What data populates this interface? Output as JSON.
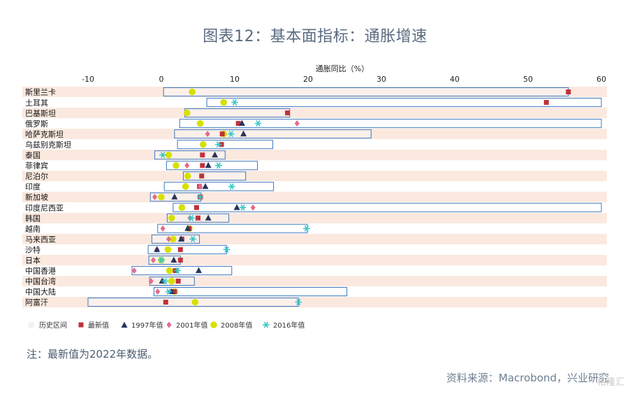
{
  "title": "图表12：基本面指标：通胀增速",
  "note": "注：最新值为2022年数据。",
  "source": "资料来源：Macrobond，兴业研究",
  "watermark": "格隆汇",
  "colors": {
    "band": "#fbe9df",
    "range_stroke": "#3a78c2",
    "latest": "#c0313a",
    "y1997": "#26355e",
    "y2001": "#e56a8a",
    "y2008": "#d6e000",
    "y2016": "#35c7c8"
  },
  "chart_data": {
    "type": "range-dot",
    "xlabel": "通胀同比（%）",
    "xlim": [
      -10,
      60
    ],
    "xticks": [
      -10,
      0,
      10,
      20,
      30,
      40,
      50,
      60
    ],
    "legend": [
      {
        "key": "range",
        "label": "历史区间"
      },
      {
        "key": "latest",
        "label": "最新值"
      },
      {
        "key": "y1997",
        "label": "1997年值"
      },
      {
        "key": "y2001",
        "label": "2001年值"
      },
      {
        "key": "y2008",
        "label": "2008年值"
      },
      {
        "key": "y2016",
        "label": "2016年值"
      }
    ],
    "rows": [
      {
        "label": "斯里兰卡",
        "min": 0.3,
        "max": 55.5,
        "latest": 55.5,
        "y1997": null,
        "y2001": null,
        "y2008": 4.2,
        "y2016": null
      },
      {
        "label": "土耳其",
        "min": 6.2,
        "max": 61.0,
        "latest": 52.5,
        "y1997": null,
        "y2001": null,
        "y2008": 8.5,
        "y2016": 10.0
      },
      {
        "label": "巴基斯坦",
        "min": 3.2,
        "max": 17.5,
        "latest": 17.2,
        "y1997": null,
        "y2001": null,
        "y2008": 3.5,
        "y2016": null
      },
      {
        "label": "俄罗斯",
        "min": 2.5,
        "max": 61.0,
        "latest": 10.5,
        "y1997": 11.0,
        "y2001": 18.5,
        "y2008": 5.3,
        "y2016": 13.2
      },
      {
        "label": "哈萨克斯坦",
        "min": 1.8,
        "max": 28.6,
        "latest": 8.3,
        "y1997": 11.2,
        "y2001": 6.3,
        "y2008": 8.5,
        "y2016": 9.5
      },
      {
        "label": "乌兹别克斯坦",
        "min": 2.2,
        "max": 15.2,
        "latest": 8.2,
        "y1997": null,
        "y2001": null,
        "y2008": 5.7,
        "y2016": 7.8
      },
      {
        "label": "泰国",
        "min": -0.9,
        "max": 8.7,
        "latest": 5.6,
        "y1997": 7.3,
        "y2001": null,
        "y2008": 1.0,
        "y2016": 0.2
      },
      {
        "label": "菲律宾",
        "min": 0.7,
        "max": 13.1,
        "latest": 5.6,
        "y1997": 6.4,
        "y2001": 3.5,
        "y2008": 2.0,
        "y2016": 7.8
      },
      {
        "label": "尼泊尔",
        "min": 3.0,
        "max": 11.5,
        "latest": 5.5,
        "y1997": null,
        "y2001": null,
        "y2008": 3.6,
        "y2016": null
      },
      {
        "label": "印度",
        "min": 0.4,
        "max": 15.3,
        "latest": 5.2,
        "y1997": 6.0,
        "y2001": 5.3,
        "y2008": 3.3,
        "y2016": 9.6
      },
      {
        "label": "新加坡",
        "min": -1.5,
        "max": 5.4,
        "latest": 5.3,
        "y1997": 1.8,
        "y2001": -0.9,
        "y2008": 0.0,
        "y2016": 5.3
      },
      {
        "label": "印度尼西亚",
        "min": 1.6,
        "max": 61.0,
        "latest": 4.8,
        "y1997": 10.3,
        "y2001": 12.5,
        "y2008": 2.8,
        "y2016": 11.1
      },
      {
        "label": "韩国",
        "min": 0.8,
        "max": 9.2,
        "latest": 5.0,
        "y1997": 6.4,
        "y2001": 3.9,
        "y2008": 1.4,
        "y2016": 4.1
      },
      {
        "label": "越南",
        "min": -0.5,
        "max": 19.9,
        "latest": 3.8,
        "y1997": 3.6,
        "y2001": 0.2,
        "y2008": 3.8,
        "y2016": 19.8
      },
      {
        "label": "马来西亚",
        "min": -1.3,
        "max": 5.2,
        "latest": 2.8,
        "y1997": 2.7,
        "y2001": 1.0,
        "y2008": 1.6,
        "y2016": 4.3
      },
      {
        "label": "沙特",
        "min": -1.8,
        "max": 8.9,
        "latest": 2.6,
        "y1997": -0.6,
        "y2001": -0.6,
        "y2008": 0.9,
        "y2016": 8.9
      },
      {
        "label": "日本",
        "min": -1.7,
        "max": 2.6,
        "latest": 2.6,
        "y1997": 1.7,
        "y2001": -1.1,
        "y2008": 0.0,
        "y2016": 0.0
      },
      {
        "label": "中国香港",
        "min": -4.0,
        "max": 9.6,
        "latest": 1.9,
        "y1997": 5.1,
        "y2001": -3.7,
        "y2008": 1.1,
        "y2016": 2.2
      },
      {
        "label": "中国台湾",
        "min": -1.6,
        "max": 4.5,
        "latest": 2.3,
        "y1997": 0.1,
        "y2001": -1.4,
        "y2008": 1.4,
        "y2016": 0.5
      },
      {
        "label": "中国大陆",
        "min": -1.0,
        "max": 25.3,
        "latest": 1.8,
        "y1997": 1.4,
        "y2001": -0.5,
        "y2008": 1.8,
        "y2016": 1.0
      },
      {
        "label": "阿富汗",
        "min": -10.0,
        "max": 18.7,
        "latest": 0.6,
        "y1997": null,
        "y2001": null,
        "y2008": 4.6,
        "y2016": 18.7
      }
    ]
  }
}
